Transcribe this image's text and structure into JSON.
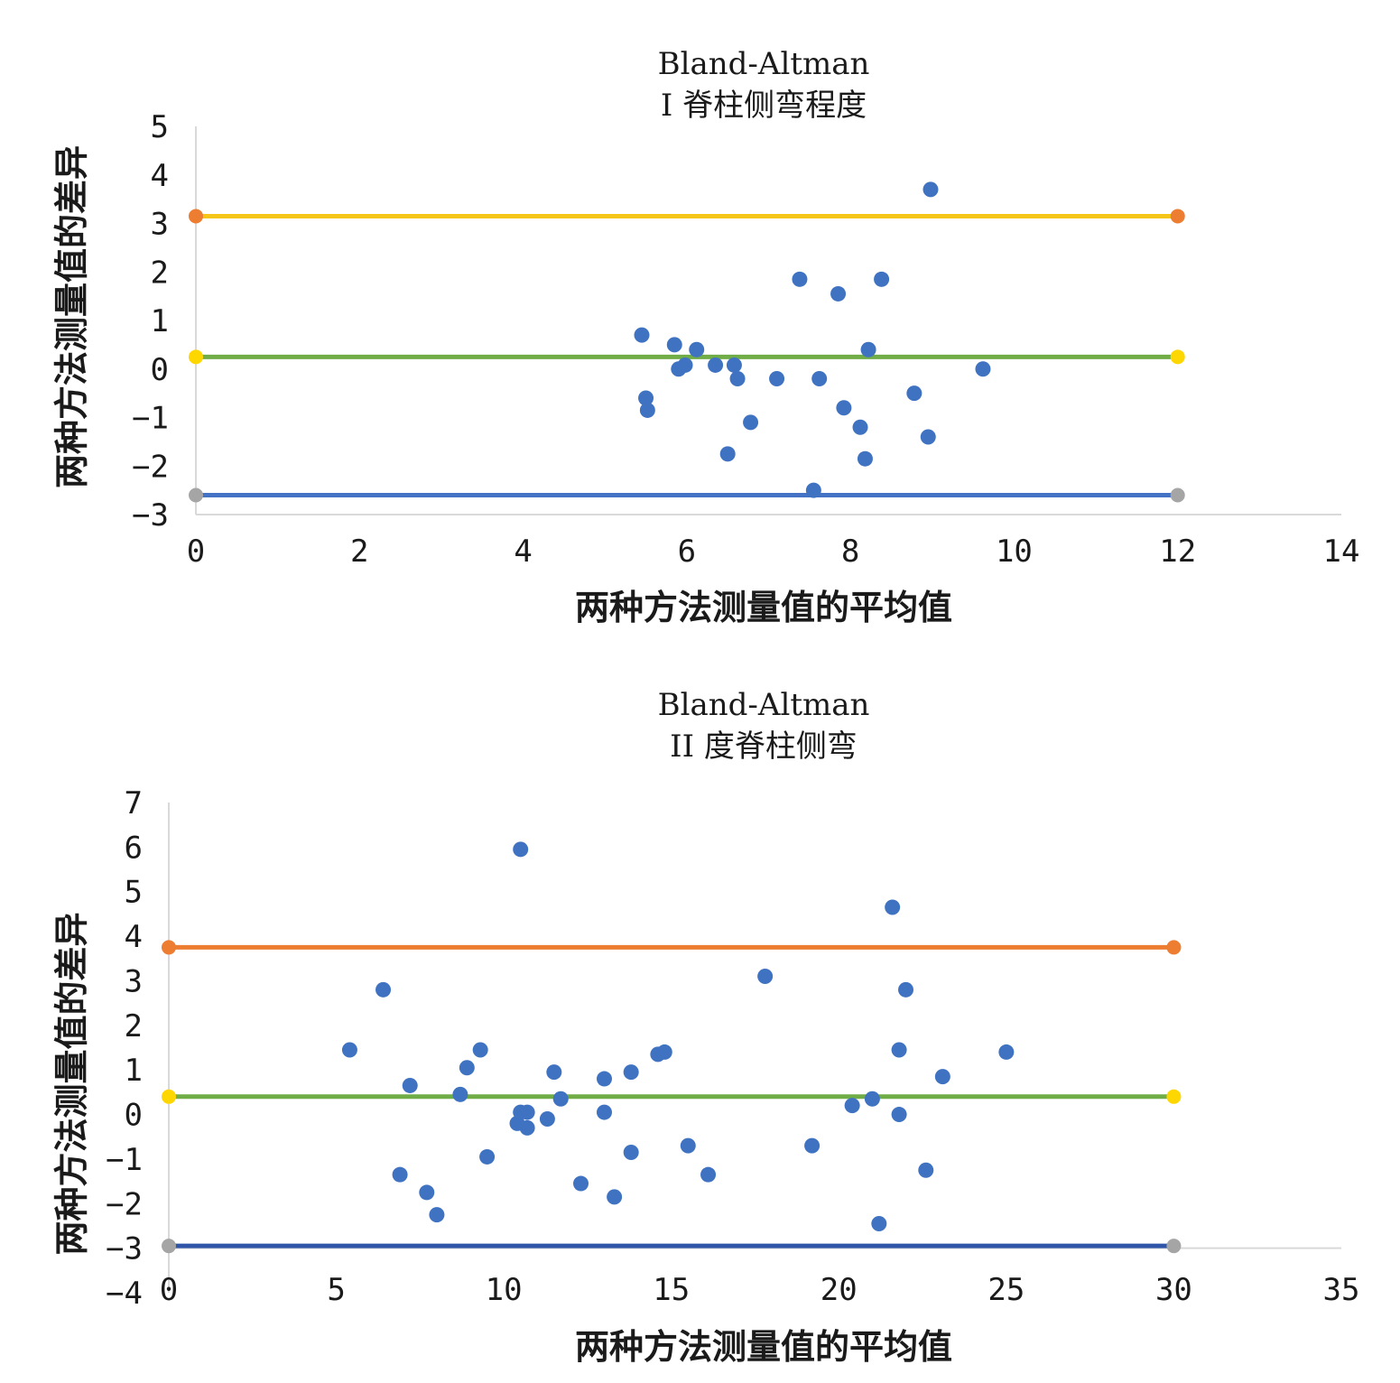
{
  "chart_data": [
    {
      "type": "scatter",
      "title": "Bland-Altman",
      "subtitle": "I 脊柱侧弯程度",
      "xlabel": "两种方法测量值的平均值",
      "ylabel": "两种方法测量值的差异",
      "xlim": [
        0,
        14
      ],
      "ylim": [
        -3,
        5
      ],
      "x_ticks": [
        0,
        2,
        4,
        6,
        8,
        10,
        12,
        14
      ],
      "y_ticks": [
        -3,
        -2,
        -1,
        0,
        1,
        2,
        3,
        4,
        5
      ],
      "grid": false,
      "points": [
        {
          "x": 5.45,
          "y": 0.7
        },
        {
          "x": 5.5,
          "y": -0.6
        },
        {
          "x": 5.52,
          "y": -0.85
        },
        {
          "x": 5.85,
          "y": 0.5
        },
        {
          "x": 5.9,
          "y": 0.0
        },
        {
          "x": 5.98,
          "y": 0.08
        },
        {
          "x": 6.12,
          "y": 0.4
        },
        {
          "x": 6.35,
          "y": 0.08
        },
        {
          "x": 6.5,
          "y": -1.75
        },
        {
          "x": 6.58,
          "y": 0.08
        },
        {
          "x": 6.62,
          "y": -0.2
        },
        {
          "x": 6.78,
          "y": -1.1
        },
        {
          "x": 7.1,
          "y": -0.2
        },
        {
          "x": 7.38,
          "y": 1.85
        },
        {
          "x": 7.55,
          "y": -2.5
        },
        {
          "x": 7.62,
          "y": -0.2
        },
        {
          "x": 7.85,
          "y": 1.55
        },
        {
          "x": 7.92,
          "y": -0.8
        },
        {
          "x": 8.12,
          "y": -1.2
        },
        {
          "x": 8.18,
          "y": -1.85
        },
        {
          "x": 8.22,
          "y": 0.4
        },
        {
          "x": 8.38,
          "y": 1.85
        },
        {
          "x": 8.78,
          "y": -0.5
        },
        {
          "x": 8.95,
          "y": -1.4
        },
        {
          "x": 8.98,
          "y": 3.7
        },
        {
          "x": 9.62,
          "y": 0.0
        }
      ],
      "reference_lines": [
        {
          "role": "upper",
          "y": 3.15,
          "color": "#f5c518",
          "end_color": "#ed7d31"
        },
        {
          "role": "mean",
          "y": 0.25,
          "color": "#70ad47",
          "end_color": "#ffd700"
        },
        {
          "role": "lower",
          "y": -2.6,
          "color": "#4472c4",
          "end_color": "#a5a5a5"
        }
      ],
      "reference_line_x": [
        0,
        12
      ],
      "colors": {
        "points": "#3f73c2",
        "axis": "#d9d9d9"
      }
    },
    {
      "type": "scatter",
      "title": "Bland-Altman",
      "subtitle": "II 度脊柱侧弯",
      "xlabel": "两种方法测量值的平均值",
      "ylabel": "两种方法测量值的差异",
      "xlim": [
        0,
        35
      ],
      "ylim": [
        -4,
        7
      ],
      "x_ticks": [
        0,
        5,
        10,
        15,
        20,
        25,
        30,
        35
      ],
      "y_ticks": [
        -4,
        -3,
        -2,
        -1,
        0,
        1,
        2,
        3,
        4,
        5,
        6,
        7
      ],
      "grid": false,
      "points": [
        {
          "x": 5.4,
          "y": 1.45
        },
        {
          "x": 6.4,
          "y": 2.8
        },
        {
          "x": 6.9,
          "y": -1.35
        },
        {
          "x": 7.2,
          "y": 0.65
        },
        {
          "x": 7.7,
          "y": -1.75
        },
        {
          "x": 8.0,
          "y": -2.25
        },
        {
          "x": 8.7,
          "y": 0.45
        },
        {
          "x": 8.9,
          "y": 1.05
        },
        {
          "x": 9.3,
          "y": 1.45
        },
        {
          "x": 9.5,
          "y": -0.95
        },
        {
          "x": 10.4,
          "y": -0.2
        },
        {
          "x": 10.5,
          "y": 0.05
        },
        {
          "x": 10.5,
          "y": 5.95
        },
        {
          "x": 10.7,
          "y": 0.05
        },
        {
          "x": 10.7,
          "y": -0.3
        },
        {
          "x": 11.3,
          "y": -0.1
        },
        {
          "x": 11.5,
          "y": 0.95
        },
        {
          "x": 11.7,
          "y": 0.35
        },
        {
          "x": 12.3,
          "y": -1.55
        },
        {
          "x": 13.0,
          "y": 0.8
        },
        {
          "x": 13.0,
          "y": 0.05
        },
        {
          "x": 13.3,
          "y": -1.85
        },
        {
          "x": 13.8,
          "y": 0.95
        },
        {
          "x": 13.8,
          "y": -0.85
        },
        {
          "x": 14.6,
          "y": 1.35
        },
        {
          "x": 14.8,
          "y": 1.4
        },
        {
          "x": 15.5,
          "y": -0.7
        },
        {
          "x": 16.1,
          "y": -1.35
        },
        {
          "x": 17.8,
          "y": 3.1
        },
        {
          "x": 19.2,
          "y": -0.7
        },
        {
          "x": 20.4,
          "y": 0.2
        },
        {
          "x": 21.0,
          "y": 0.35
        },
        {
          "x": 21.2,
          "y": -2.45
        },
        {
          "x": 21.6,
          "y": 4.65
        },
        {
          "x": 21.8,
          "y": 1.45
        },
        {
          "x": 21.8,
          "y": 0.0
        },
        {
          "x": 22.0,
          "y": 2.8
        },
        {
          "x": 22.6,
          "y": -1.25
        },
        {
          "x": 23.1,
          "y": 0.85
        },
        {
          "x": 25.0,
          "y": 1.4
        }
      ],
      "reference_lines": [
        {
          "role": "upper",
          "y": 3.75,
          "color": "#ed7d31",
          "end_color": "#ed7d31"
        },
        {
          "role": "mean",
          "y": 0.4,
          "color": "#70ad47",
          "end_color": "#ffd700"
        },
        {
          "role": "lower",
          "y": -2.95,
          "color": "#2f55a8",
          "end_color": "#a5a5a5"
        }
      ],
      "reference_line_x": [
        0,
        30
      ],
      "colors": {
        "points": "#3f73c2",
        "axis": "#d9d9d9"
      }
    }
  ]
}
